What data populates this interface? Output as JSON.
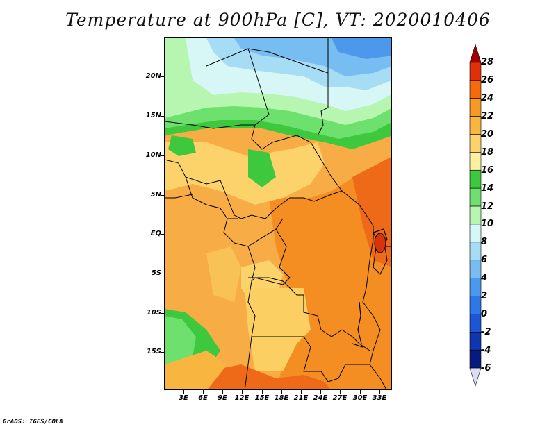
{
  "title": "Temperature at 900hPa [C], VT: 2020010406",
  "credit": "GrADS: IGES/COLA",
  "map": {
    "lat_labels": [
      "20N",
      "15N",
      "10N",
      "5N",
      "EQ",
      "5S",
      "10S",
      "15S"
    ],
    "lon_labels": [
      "3E",
      "6E",
      "9E",
      "12E",
      "15E",
      "18E",
      "21E",
      "24E",
      "27E",
      "30E",
      "33E"
    ]
  },
  "colorbar": {
    "levels": [
      "28",
      "26",
      "24",
      "22",
      "20",
      "18",
      "16",
      "14",
      "12",
      "10",
      "8",
      "6",
      "4",
      "2",
      "0",
      "-2",
      "-4",
      "-6"
    ],
    "colors": [
      "#a00000",
      "#e13008",
      "#f56a0a",
      "#f79a25",
      "#f8b540",
      "#fbd36a",
      "#fdf0a0",
      "#3ec83e",
      "#6ee06e",
      "#b6f6b0",
      "#d7f7f7",
      "#a7dcf5",
      "#78bdf2",
      "#4c98ec",
      "#2f76e6",
      "#1c56d4",
      "#0d37b0",
      "#071a80",
      "#dcdcf5"
    ]
  }
}
